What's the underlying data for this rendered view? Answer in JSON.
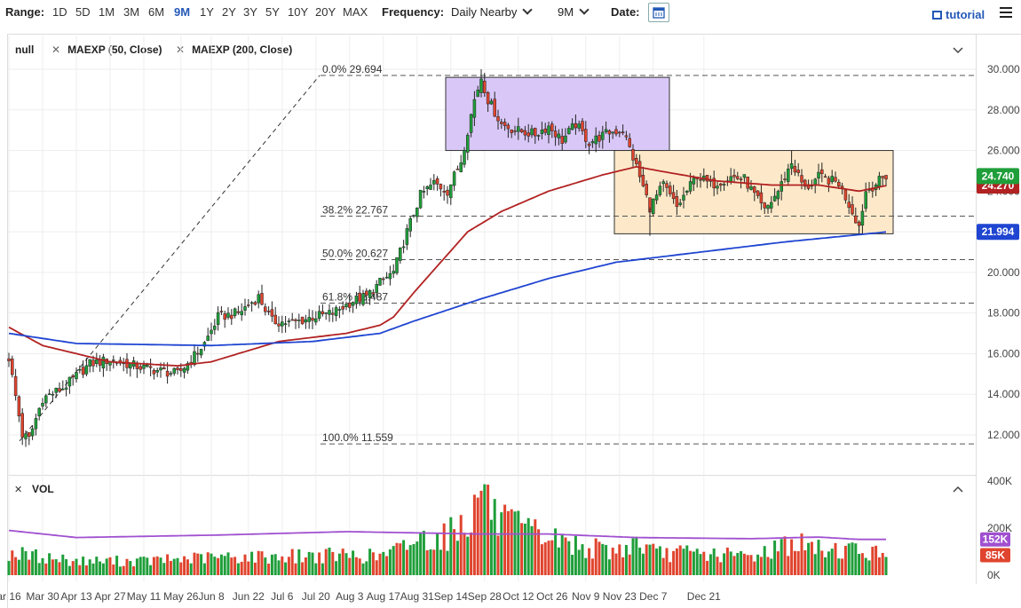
{
  "toolbar": {
    "range_label": "Range:",
    "ranges": [
      "1D",
      "5D",
      "1M",
      "3M",
      "6M",
      "9M",
      "1Y",
      "2Y",
      "3Y",
      "5Y",
      "10Y",
      "20Y",
      "MAX"
    ],
    "active_range": "9M",
    "frequency_label": "Frequency:",
    "frequency_value": "Daily Nearby",
    "period_value": "9M",
    "date_label": "Date:",
    "tutorial_label": "tutorial"
  },
  "legend": {
    "items": [
      "null",
      "MAEXP (50, Close)",
      "MAEXP (200, Close)"
    ]
  },
  "vol_panel": {
    "label": "VOL"
  },
  "colors": {
    "up": "#1f9e3a",
    "down": "#e0442e",
    "ma50": "#b22222",
    "ma200": "#1f45d1",
    "volavg": "#a050d0",
    "box_purple": "#d9c8f7",
    "box_orange": "#fde9c9",
    "accent": "#2458b7"
  },
  "chart_data": {
    "type": "candlestick",
    "price_axis": {
      "ticks": [
        "30.000",
        "28.000",
        "26.000",
        "24.000",
        "22.000",
        "20.000",
        "18.000",
        "16.000",
        "14.000",
        "12.000"
      ],
      "range": [
        10.5,
        31.0
      ]
    },
    "volume_axis": {
      "ticks": [
        "400K",
        "200K",
        "0K"
      ],
      "range": [
        0,
        450
      ]
    },
    "x_labels": [
      "ar 16",
      "Mar 30",
      "Apr 13",
      "Apr 27",
      "May 11",
      "May 26",
      "Jun 8",
      "Jun 22",
      "Jul 6",
      "Jul 20",
      "Aug 3",
      "Aug 17",
      "Aug 31",
      "Sep 14",
      "Sep 28",
      "Oct 12",
      "Oct 26",
      "Nov 9",
      "Nov 23",
      "Dec 7",
      "Dec 21"
    ],
    "fib_levels": [
      {
        "label": "0.0% 29.694",
        "value": 29.694
      },
      {
        "label": "38.2% 22.767",
        "value": 22.767
      },
      {
        "label": "50.0% 20.627",
        "value": 20.627
      },
      {
        "label": "61.8% 18.487",
        "value": 18.487
      },
      {
        "label": "100.0% 11.559",
        "value": 11.559
      }
    ],
    "last_price": "24.740",
    "last_price_value": 24.74,
    "ma50_value_label": "24.270",
    "ma50_value": 24.27,
    "ma200_value_label": "21.994",
    "ma200_value": 21.994,
    "vol_avg_label": "152K",
    "vol_last_label": "85K",
    "vol_avg_value": 152,
    "vol_last_value": 85,
    "price_anchors": [
      [
        0,
        15.8
      ],
      [
        4,
        12.0
      ],
      [
        6,
        11.8
      ],
      [
        10,
        13.8
      ],
      [
        16,
        14.3
      ],
      [
        24,
        15.5
      ],
      [
        30,
        15.7
      ],
      [
        40,
        15.3
      ],
      [
        50,
        15.0
      ],
      [
        54,
        15.7
      ],
      [
        58,
        16.5
      ],
      [
        62,
        17.8
      ],
      [
        68,
        18.0
      ],
      [
        74,
        18.8
      ],
      [
        78,
        17.6
      ],
      [
        84,
        17.5
      ],
      [
        90,
        17.8
      ],
      [
        96,
        18.0
      ],
      [
        102,
        18.6
      ],
      [
        106,
        18.8
      ],
      [
        110,
        19.5
      ],
      [
        114,
        20.0
      ],
      [
        118,
        22.0
      ],
      [
        122,
        23.8
      ],
      [
        126,
        24.4
      ],
      [
        130,
        24.0
      ],
      [
        134,
        25.5
      ],
      [
        138,
        28.5
      ],
      [
        140,
        29.6
      ],
      [
        142,
        28.5
      ],
      [
        146,
        27.3
      ],
      [
        150,
        27.0
      ],
      [
        156,
        26.8
      ],
      [
        160,
        27.2
      ],
      [
        164,
        26.5
      ],
      [
        168,
        27.3
      ],
      [
        172,
        26.4
      ],
      [
        178,
        26.9
      ],
      [
        182,
        27.0
      ],
      [
        186,
        25.2
      ],
      [
        190,
        23.2
      ],
      [
        194,
        24.3
      ],
      [
        198,
        23.2
      ],
      [
        204,
        24.8
      ],
      [
        208,
        24.3
      ],
      [
        214,
        24.7
      ],
      [
        218,
        24.6
      ],
      [
        224,
        23.0
      ],
      [
        228,
        24.0
      ],
      [
        232,
        25.4
      ],
      [
        236,
        24.1
      ],
      [
        240,
        24.7
      ],
      [
        246,
        24.4
      ],
      [
        250,
        23.0
      ],
      [
        252,
        22.3
      ],
      [
        254,
        24.0
      ],
      [
        258,
        24.5
      ],
      [
        260,
        24.74
      ]
    ],
    "wicks": [
      [
        140,
        30.0
      ],
      [
        6,
        11.5
      ],
      [
        190,
        21.8
      ],
      [
        252,
        21.9
      ],
      [
        232,
        26.0
      ]
    ],
    "ma50_anchors": [
      [
        0,
        17.3
      ],
      [
        10,
        16.4
      ],
      [
        30,
        15.6
      ],
      [
        50,
        15.4
      ],
      [
        60,
        15.6
      ],
      [
        80,
        16.6
      ],
      [
        100,
        17.0
      ],
      [
        110,
        17.4
      ],
      [
        114,
        17.8
      ],
      [
        120,
        19.0
      ],
      [
        128,
        20.5
      ],
      [
        136,
        22.0
      ],
      [
        146,
        23.0
      ],
      [
        160,
        24.0
      ],
      [
        176,
        24.8
      ],
      [
        186,
        25.2
      ],
      [
        196,
        24.9
      ],
      [
        210,
        24.5
      ],
      [
        226,
        24.3
      ],
      [
        240,
        24.3
      ],
      [
        252,
        24.0
      ],
      [
        260,
        24.27
      ]
    ],
    "ma200_anchors": [
      [
        0,
        17.0
      ],
      [
        20,
        16.5
      ],
      [
        60,
        16.4
      ],
      [
        90,
        16.6
      ],
      [
        110,
        17.0
      ],
      [
        120,
        17.6
      ],
      [
        140,
        18.7
      ],
      [
        160,
        19.7
      ],
      [
        180,
        20.5
      ],
      [
        200,
        20.9
      ],
      [
        230,
        21.5
      ],
      [
        260,
        21.99
      ]
    ],
    "vol_anchors": [
      [
        0,
        95
      ],
      [
        20,
        60
      ],
      [
        40,
        60
      ],
      [
        60,
        75
      ],
      [
        80,
        80
      ],
      [
        100,
        85
      ],
      [
        110,
        80
      ],
      [
        116,
        110
      ],
      [
        120,
        150
      ],
      [
        124,
        160
      ],
      [
        130,
        170
      ],
      [
        134,
        220
      ],
      [
        138,
        270
      ],
      [
        140,
        410
      ],
      [
        144,
        240
      ],
      [
        150,
        200
      ],
      [
        160,
        160
      ],
      [
        170,
        120
      ],
      [
        180,
        100
      ],
      [
        186,
        140
      ],
      [
        192,
        90
      ],
      [
        200,
        95
      ],
      [
        220,
        80
      ],
      [
        232,
        140
      ],
      [
        240,
        110
      ],
      [
        250,
        110
      ],
      [
        260,
        85
      ]
    ],
    "vol_avg_anchors": [
      [
        0,
        190
      ],
      [
        20,
        160
      ],
      [
        60,
        170
      ],
      [
        100,
        185
      ],
      [
        120,
        180
      ],
      [
        140,
        175
      ],
      [
        160,
        175
      ],
      [
        186,
        160
      ],
      [
        220,
        155
      ],
      [
        240,
        162
      ],
      [
        252,
        152
      ],
      [
        260,
        152
      ]
    ]
  }
}
